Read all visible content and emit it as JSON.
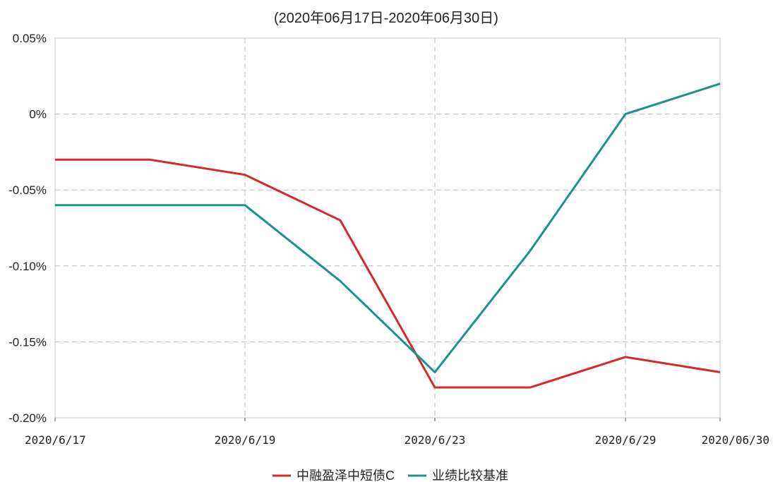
{
  "chart_data": {
    "type": "line",
    "title": "(2020年06月17日-2020年06月30日)",
    "x": [
      "2020/6/17",
      "2020/6/18",
      "2020/6/19",
      "2020/6/22",
      "2020/6/23",
      "2020/6/24",
      "2020/6/29",
      "2020/06/30"
    ],
    "x_tick_labels": [
      "2020/6/17",
      "2020/6/19",
      "2020/6/23",
      "2020/6/29",
      "2020/06/30"
    ],
    "y_ticks": [
      0.05,
      0,
      -0.05,
      -0.1,
      -0.15,
      -0.2
    ],
    "y_tick_labels": [
      "0.05%",
      "0%",
      "-0.05%",
      "-0.10%",
      "-0.15%",
      "-0.20%"
    ],
    "ylim": [
      -0.2,
      0.05
    ],
    "grid": true,
    "legend_position": "bottom",
    "series": [
      {
        "name": "中融盈泽中短债C",
        "color": "#d42a2a",
        "values": [
          -0.03,
          -0.03,
          -0.04,
          -0.07,
          -0.18,
          -0.18,
          -0.16,
          -0.17
        ]
      },
      {
        "name": "业绩比较基准",
        "color": "#1e9090",
        "values": [
          -0.06,
          -0.06,
          -0.06,
          -0.11,
          -0.17,
          -0.09,
          0.0,
          0.02
        ]
      }
    ]
  }
}
